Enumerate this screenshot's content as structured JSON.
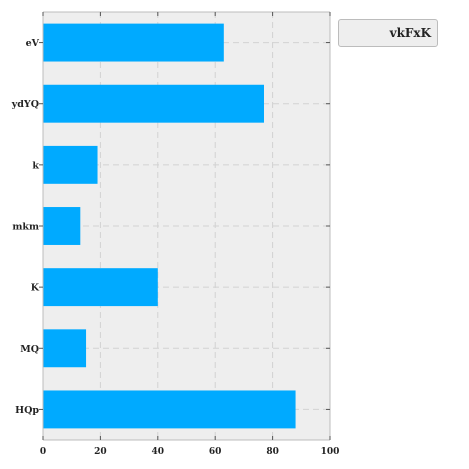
{
  "chart_data": {
    "type": "bar",
    "orientation": "horizontal",
    "categories": [
      "eV",
      "ydYQ",
      "k",
      "mkm",
      "K",
      "MQ",
      "HQp"
    ],
    "series": [
      {
        "name": "vkFxK",
        "values": [
          63,
          77,
          19,
          13,
          40,
          15,
          88
        ],
        "color": "#00aaff"
      }
    ],
    "xlim": [
      0,
      100
    ],
    "xticks": [
      0,
      20,
      40,
      60,
      80,
      100
    ],
    "grid": true,
    "legend_position": "top-right-outside",
    "colors": {
      "background": "#eeeeee",
      "grid": "#d2d2d2",
      "bar": "#00aaff"
    }
  }
}
